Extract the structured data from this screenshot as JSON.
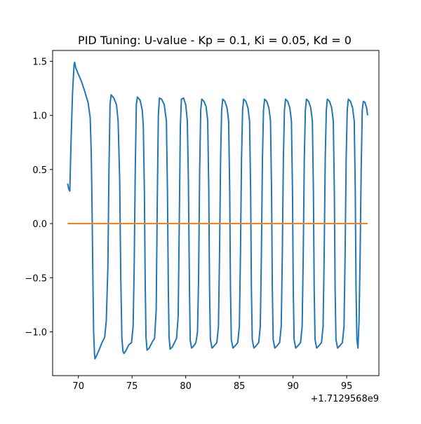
{
  "chart_data": {
    "type": "line",
    "title": "PID Tuning: U-value - Kp = 0.1, Ki = 0.05, Kd = 0",
    "xlabel": "",
    "ylabel": "",
    "x_offset_label": "+1.7129568e9",
    "xlim": [
      67.6,
      98.0
    ],
    "ylim": [
      -1.405,
      1.6
    ],
    "x_ticks": [
      70,
      75,
      80,
      85,
      90,
      95
    ],
    "x_tick_labels": [
      "70",
      "75",
      "80",
      "85",
      "90",
      "95"
    ],
    "y_ticks": [
      -1.0,
      -0.5,
      0.0,
      0.5,
      1.0,
      1.5
    ],
    "y_tick_labels": [
      "−1.0",
      "−0.5",
      "0.0",
      "0.5",
      "1.0",
      "1.5"
    ],
    "grid": false,
    "legend": "none",
    "series": [
      {
        "color": "#1f77b4",
        "points": [
          [
            69.0,
            0.37
          ],
          [
            69.1,
            0.32
          ],
          [
            69.2,
            0.3
          ],
          [
            69.3,
            0.7
          ],
          [
            69.45,
            1.2
          ],
          [
            69.6,
            1.47
          ],
          [
            69.65,
            1.49
          ],
          [
            69.75,
            1.44
          ],
          [
            70.0,
            1.38
          ],
          [
            70.3,
            1.31
          ],
          [
            70.6,
            1.22
          ],
          [
            70.9,
            1.12
          ],
          [
            71.1,
            0.98
          ],
          [
            71.2,
            0.65
          ],
          [
            71.28,
            0.1
          ],
          [
            71.35,
            -0.5
          ],
          [
            71.42,
            -1.0
          ],
          [
            71.5,
            -1.2
          ],
          [
            71.55,
            -1.25
          ],
          [
            71.7,
            -1.22
          ],
          [
            72.0,
            -1.15
          ],
          [
            72.2,
            -1.1
          ],
          [
            72.45,
            -1.05
          ],
          [
            72.6,
            -0.9
          ],
          [
            72.75,
            -0.4
          ],
          [
            72.85,
            0.5
          ],
          [
            72.95,
            1.1
          ],
          [
            73.05,
            1.19
          ],
          [
            73.3,
            1.16
          ],
          [
            73.55,
            1.1
          ],
          [
            73.7,
            0.95
          ],
          [
            73.85,
            0.4
          ],
          [
            73.95,
            -0.5
          ],
          [
            74.05,
            -1.05
          ],
          [
            74.15,
            -1.18
          ],
          [
            74.25,
            -1.2
          ],
          [
            74.45,
            -1.17
          ],
          [
            74.7,
            -1.12
          ],
          [
            74.95,
            -1.1
          ],
          [
            75.1,
            -0.95
          ],
          [
            75.2,
            -0.4
          ],
          [
            75.3,
            0.5
          ],
          [
            75.4,
            1.1
          ],
          [
            75.5,
            1.17
          ],
          [
            75.75,
            1.14
          ],
          [
            75.95,
            1.05
          ],
          [
            76.05,
            0.9
          ],
          [
            76.15,
            0.3
          ],
          [
            76.22,
            -0.5
          ],
          [
            76.3,
            -1.05
          ],
          [
            76.4,
            -1.17
          ],
          [
            76.6,
            -1.15
          ],
          [
            76.85,
            -1.1
          ],
          [
            77.1,
            -1.06
          ],
          [
            77.25,
            -0.8
          ],
          [
            77.35,
            0.2
          ],
          [
            77.45,
            1.0
          ],
          [
            77.55,
            1.16
          ],
          [
            77.75,
            1.15
          ],
          [
            78.0,
            1.1
          ],
          [
            78.2,
            0.95
          ],
          [
            78.3,
            0.3
          ],
          [
            78.38,
            -0.6
          ],
          [
            78.45,
            -1.05
          ],
          [
            78.55,
            -1.16
          ],
          [
            78.75,
            -1.14
          ],
          [
            78.95,
            -1.1
          ],
          [
            79.15,
            -1.06
          ],
          [
            79.3,
            -0.85
          ],
          [
            79.4,
            0.0
          ],
          [
            79.5,
            0.9
          ],
          [
            79.6,
            1.15
          ],
          [
            79.8,
            1.16
          ],
          [
            80.0,
            1.1
          ],
          [
            80.15,
            0.95
          ],
          [
            80.25,
            0.4
          ],
          [
            80.35,
            -0.6
          ],
          [
            80.42,
            -1.08
          ],
          [
            80.55,
            -1.15
          ],
          [
            80.75,
            -1.13
          ],
          [
            80.95,
            -1.1
          ],
          [
            81.1,
            -1.0
          ],
          [
            81.2,
            -0.5
          ],
          [
            81.3,
            0.5
          ],
          [
            81.4,
            1.05
          ],
          [
            81.5,
            1.15
          ],
          [
            81.7,
            1.13
          ],
          [
            81.9,
            1.08
          ],
          [
            82.05,
            0.95
          ],
          [
            82.15,
            0.3
          ],
          [
            82.22,
            -0.6
          ],
          [
            82.3,
            -1.07
          ],
          [
            82.45,
            -1.15
          ],
          [
            82.65,
            -1.13
          ],
          [
            82.9,
            -1.1
          ],
          [
            83.05,
            -0.95
          ],
          [
            83.15,
            -0.3
          ],
          [
            83.25,
            0.6
          ],
          [
            83.35,
            1.05
          ],
          [
            83.45,
            1.15
          ],
          [
            83.65,
            1.13
          ],
          [
            83.85,
            1.07
          ],
          [
            84.0,
            0.95
          ],
          [
            84.1,
            0.3
          ],
          [
            84.17,
            -0.6
          ],
          [
            84.25,
            -1.07
          ],
          [
            84.4,
            -1.15
          ],
          [
            84.6,
            -1.13
          ],
          [
            84.85,
            -1.1
          ],
          [
            85.0,
            -0.95
          ],
          [
            85.1,
            -0.3
          ],
          [
            85.2,
            0.6
          ],
          [
            85.3,
            1.05
          ],
          [
            85.4,
            1.15
          ],
          [
            85.6,
            1.13
          ],
          [
            85.8,
            1.07
          ],
          [
            85.95,
            0.95
          ],
          [
            86.05,
            0.3
          ],
          [
            86.12,
            -0.6
          ],
          [
            86.2,
            -1.07
          ],
          [
            86.35,
            -1.15
          ],
          [
            86.55,
            -1.13
          ],
          [
            86.8,
            -1.1
          ],
          [
            86.95,
            -0.95
          ],
          [
            87.05,
            -0.3
          ],
          [
            87.15,
            0.6
          ],
          [
            87.25,
            1.05
          ],
          [
            87.35,
            1.15
          ],
          [
            87.55,
            1.13
          ],
          [
            87.75,
            1.07
          ],
          [
            87.9,
            0.95
          ],
          [
            88.0,
            0.3
          ],
          [
            88.07,
            -0.6
          ],
          [
            88.15,
            -1.07
          ],
          [
            88.3,
            -1.15
          ],
          [
            88.5,
            -1.13
          ],
          [
            88.75,
            -1.1
          ],
          [
            88.9,
            -0.95
          ],
          [
            89.0,
            -0.3
          ],
          [
            89.1,
            0.6
          ],
          [
            89.2,
            1.05
          ],
          [
            89.3,
            1.15
          ],
          [
            89.5,
            1.13
          ],
          [
            89.7,
            1.07
          ],
          [
            89.85,
            0.95
          ],
          [
            89.95,
            0.3
          ],
          [
            90.02,
            -0.6
          ],
          [
            90.1,
            -1.07
          ],
          [
            90.25,
            -1.15
          ],
          [
            90.45,
            -1.13
          ],
          [
            90.7,
            -1.1
          ],
          [
            90.85,
            -0.95
          ],
          [
            90.95,
            -0.3
          ],
          [
            91.05,
            0.6
          ],
          [
            91.15,
            1.05
          ],
          [
            91.25,
            1.15
          ],
          [
            91.45,
            1.13
          ],
          [
            91.65,
            1.07
          ],
          [
            91.8,
            0.95
          ],
          [
            91.9,
            0.3
          ],
          [
            91.97,
            -0.6
          ],
          [
            92.05,
            -1.07
          ],
          [
            92.2,
            -1.15
          ],
          [
            92.4,
            -1.13
          ],
          [
            92.65,
            -1.1
          ],
          [
            92.8,
            -0.95
          ],
          [
            92.9,
            -0.3
          ],
          [
            93.0,
            0.6
          ],
          [
            93.1,
            1.05
          ],
          [
            93.2,
            1.15
          ],
          [
            93.4,
            1.13
          ],
          [
            93.6,
            1.07
          ],
          [
            93.75,
            0.95
          ],
          [
            93.85,
            0.3
          ],
          [
            93.92,
            -0.6
          ],
          [
            94.0,
            -1.07
          ],
          [
            94.15,
            -1.15
          ],
          [
            94.35,
            -1.13
          ],
          [
            94.6,
            -1.1
          ],
          [
            94.75,
            -0.95
          ],
          [
            94.85,
            -0.3
          ],
          [
            94.95,
            0.6
          ],
          [
            95.05,
            1.05
          ],
          [
            95.15,
            1.15
          ],
          [
            95.35,
            1.13
          ],
          [
            95.55,
            1.07
          ],
          [
            95.7,
            0.95
          ],
          [
            95.8,
            0.3
          ],
          [
            95.87,
            -0.6
          ],
          [
            95.95,
            -1.07
          ],
          [
            96.05,
            -1.15
          ],
          [
            96.15,
            -0.9
          ],
          [
            96.25,
            -0.3
          ],
          [
            96.35,
            0.5
          ],
          [
            96.45,
            1.05
          ],
          [
            96.55,
            1.13
          ],
          [
            96.7,
            1.12
          ],
          [
            96.85,
            1.07
          ],
          [
            96.95,
            1.0
          ]
        ]
      },
      {
        "color": "#ff7f0e",
        "points": [
          [
            69.0,
            0.0
          ],
          [
            96.95,
            0.0
          ]
        ]
      }
    ]
  }
}
